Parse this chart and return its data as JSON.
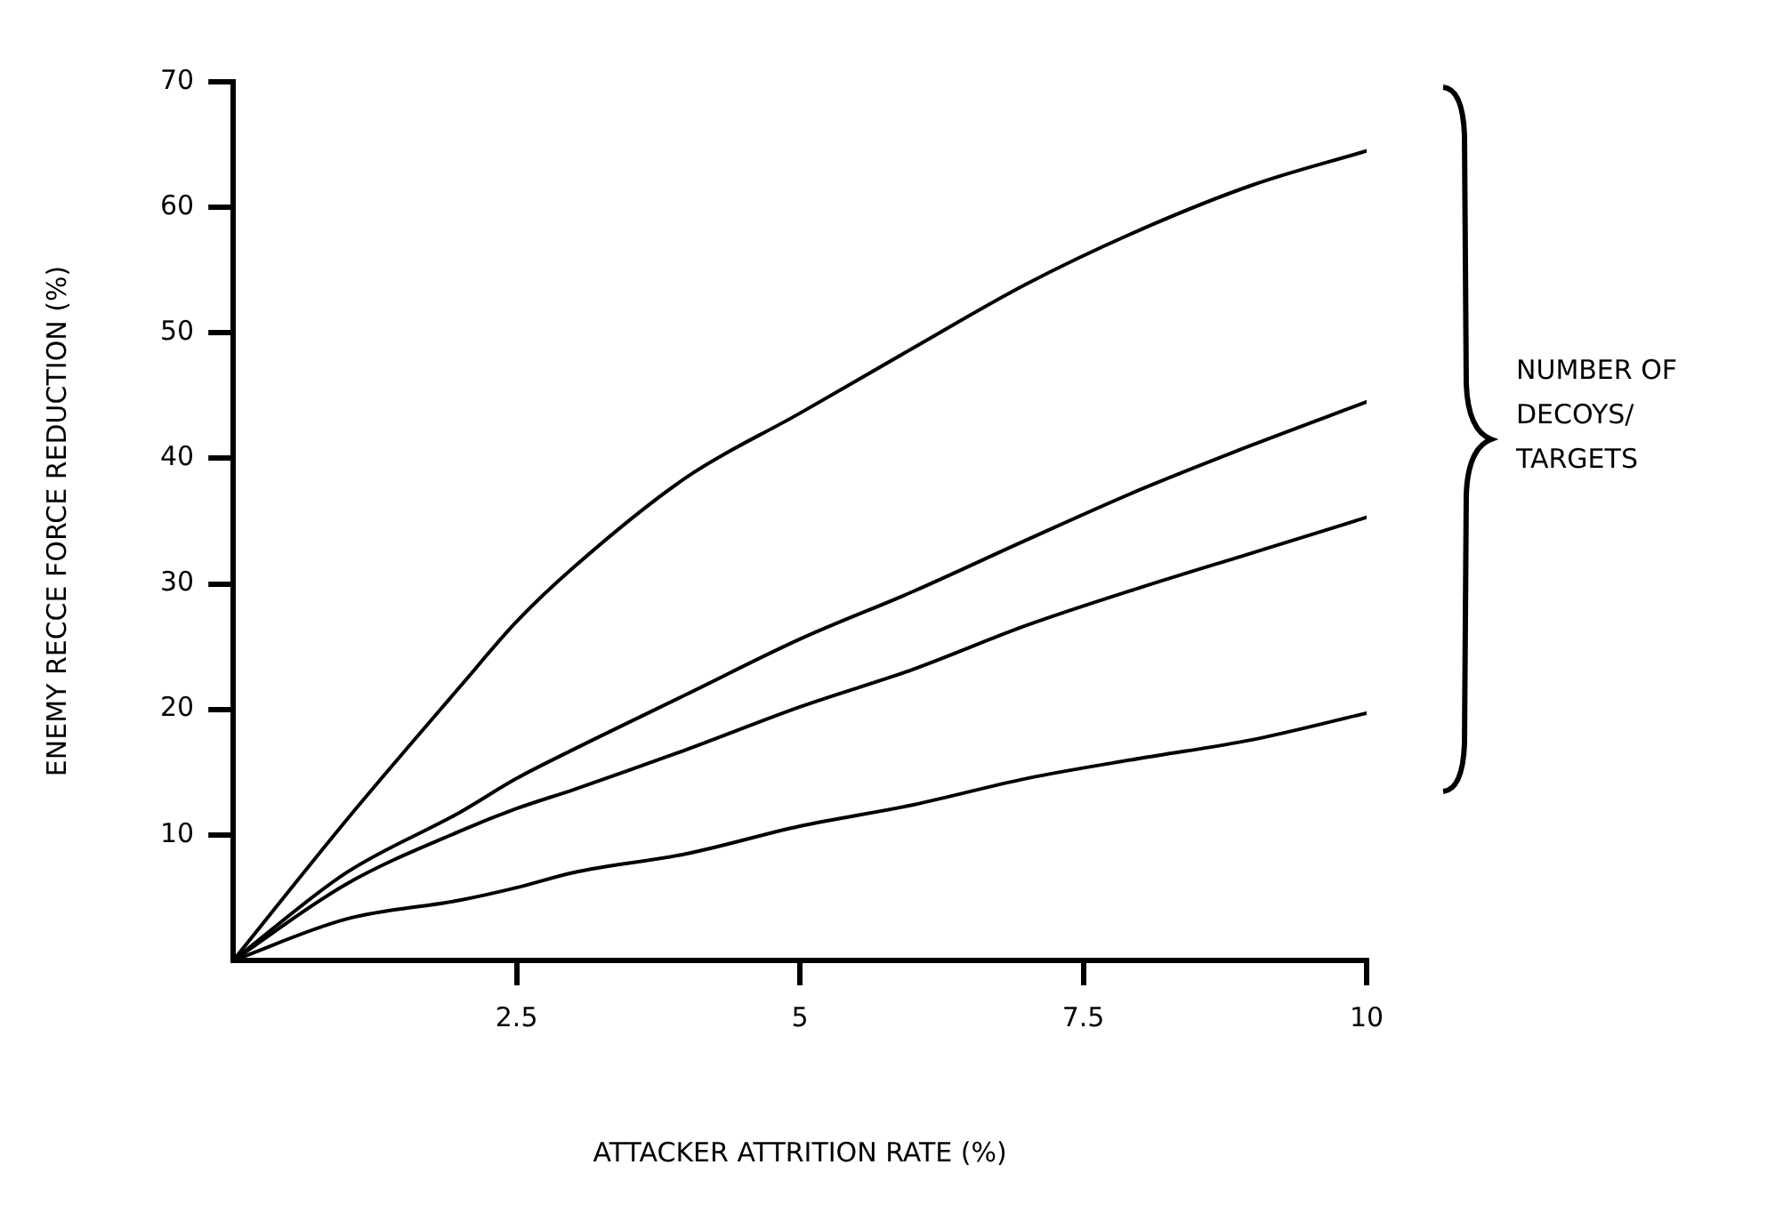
{
  "chart_data": {
    "type": "line",
    "xlabel": "ATTACKER ATTRITION RATE (%)",
    "ylabel": "ENEMY RECCE FORCE REDUCTION (%)",
    "x": [
      0,
      1,
      2,
      2.5,
      3,
      4,
      5,
      6,
      7,
      8,
      9,
      10
    ],
    "series": [
      {
        "color": "#000000",
        "values": [
          0,
          11.2,
          21.8,
          27.0,
          31.3,
          38.5,
          43.6,
          48.8,
          53.9,
          58.2,
          61.8,
          64.5
        ]
      },
      {
        "color": "#000000",
        "values": [
          0,
          7.0,
          11.8,
          14.5,
          16.8,
          21.2,
          25.6,
          29.4,
          33.5,
          37.5,
          41.1,
          44.5
        ]
      },
      {
        "color": "#000000",
        "values": [
          0,
          6.1,
          10.3,
          12.1,
          13.6,
          16.8,
          20.2,
          23.2,
          26.7,
          29.7,
          32.5,
          35.3
        ]
      },
      {
        "color": "#000000",
        "values": [
          0,
          3.3,
          4.8,
          5.8,
          7.0,
          8.5,
          10.7,
          12.4,
          14.5,
          16.1,
          17.6,
          19.7
        ]
      }
    ],
    "xlim": [
      0,
      10
    ],
    "xticks": [
      2.5,
      5,
      7.5,
      10
    ],
    "ylim": [
      0,
      70
    ],
    "yticks": [
      10,
      20,
      30,
      40,
      50,
      60,
      70
    ],
    "annotations": [
      "NUMBER OF DECOYS/ TARGETS"
    ],
    "grid": false,
    "legend": false,
    "marker": "none",
    "line_style": "solid"
  }
}
